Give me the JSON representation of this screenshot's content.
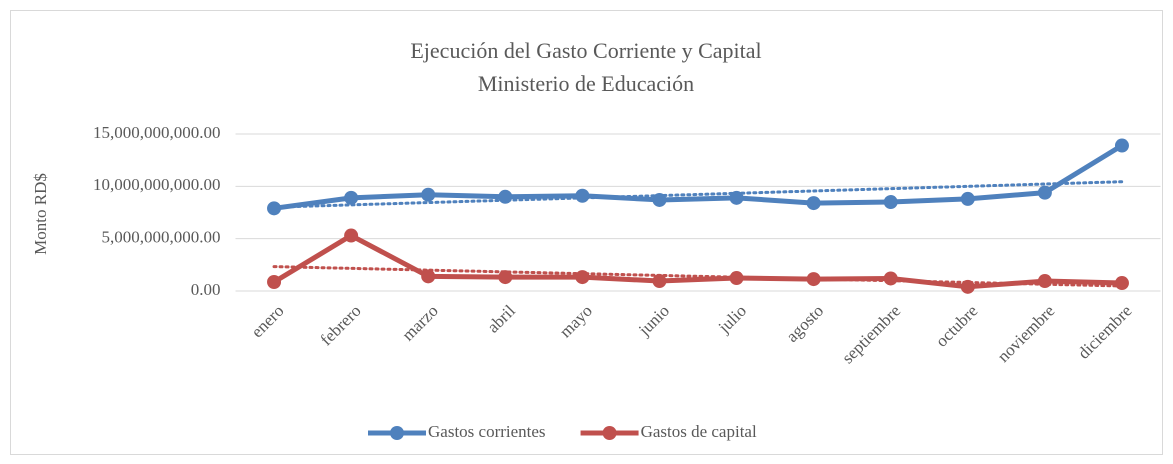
{
  "chart_data": {
    "type": "line",
    "title": "Ejecución del Gasto Corriente y Capital",
    "subtitle": "Ministerio de Educación",
    "y_label": "Monto RD$",
    "categories": [
      "enero",
      "febrero",
      "marzo",
      "abril",
      "mayo",
      "junio",
      "julio",
      "agosto",
      "septiembre",
      "octubre",
      "noviembre",
      "diciembre"
    ],
    "series": [
      {
        "name": "Gastos corrientes",
        "color": "#4f81bd",
        "values": [
          7900000000,
          8900000000,
          9200000000,
          9000000000,
          9100000000,
          8700000000,
          8900000000,
          8400000000,
          8500000000,
          8800000000,
          9400000000,
          13900000000
        ]
      },
      {
        "name": "Gastos de capital",
        "color": "#c0504d",
        "values": [
          860000000,
          5300000000,
          1400000000,
          1330000000,
          1330000000,
          950000000,
          1240000000,
          1140000000,
          1200000000,
          400000000,
          950000000,
          760000000
        ]
      }
    ],
    "ylim": [
      0,
      15000000000
    ],
    "yticks": [
      {
        "value": 0,
        "label": "0.00"
      },
      {
        "value": 5000000000,
        "label": "5,000,000,000.00"
      },
      {
        "value": 10000000000,
        "label": "10,000,000,000.00"
      },
      {
        "value": 15000000000,
        "label": "15,000,000,000.00"
      }
    ],
    "grid": true,
    "trendline": "linear",
    "legend": "bottom"
  }
}
